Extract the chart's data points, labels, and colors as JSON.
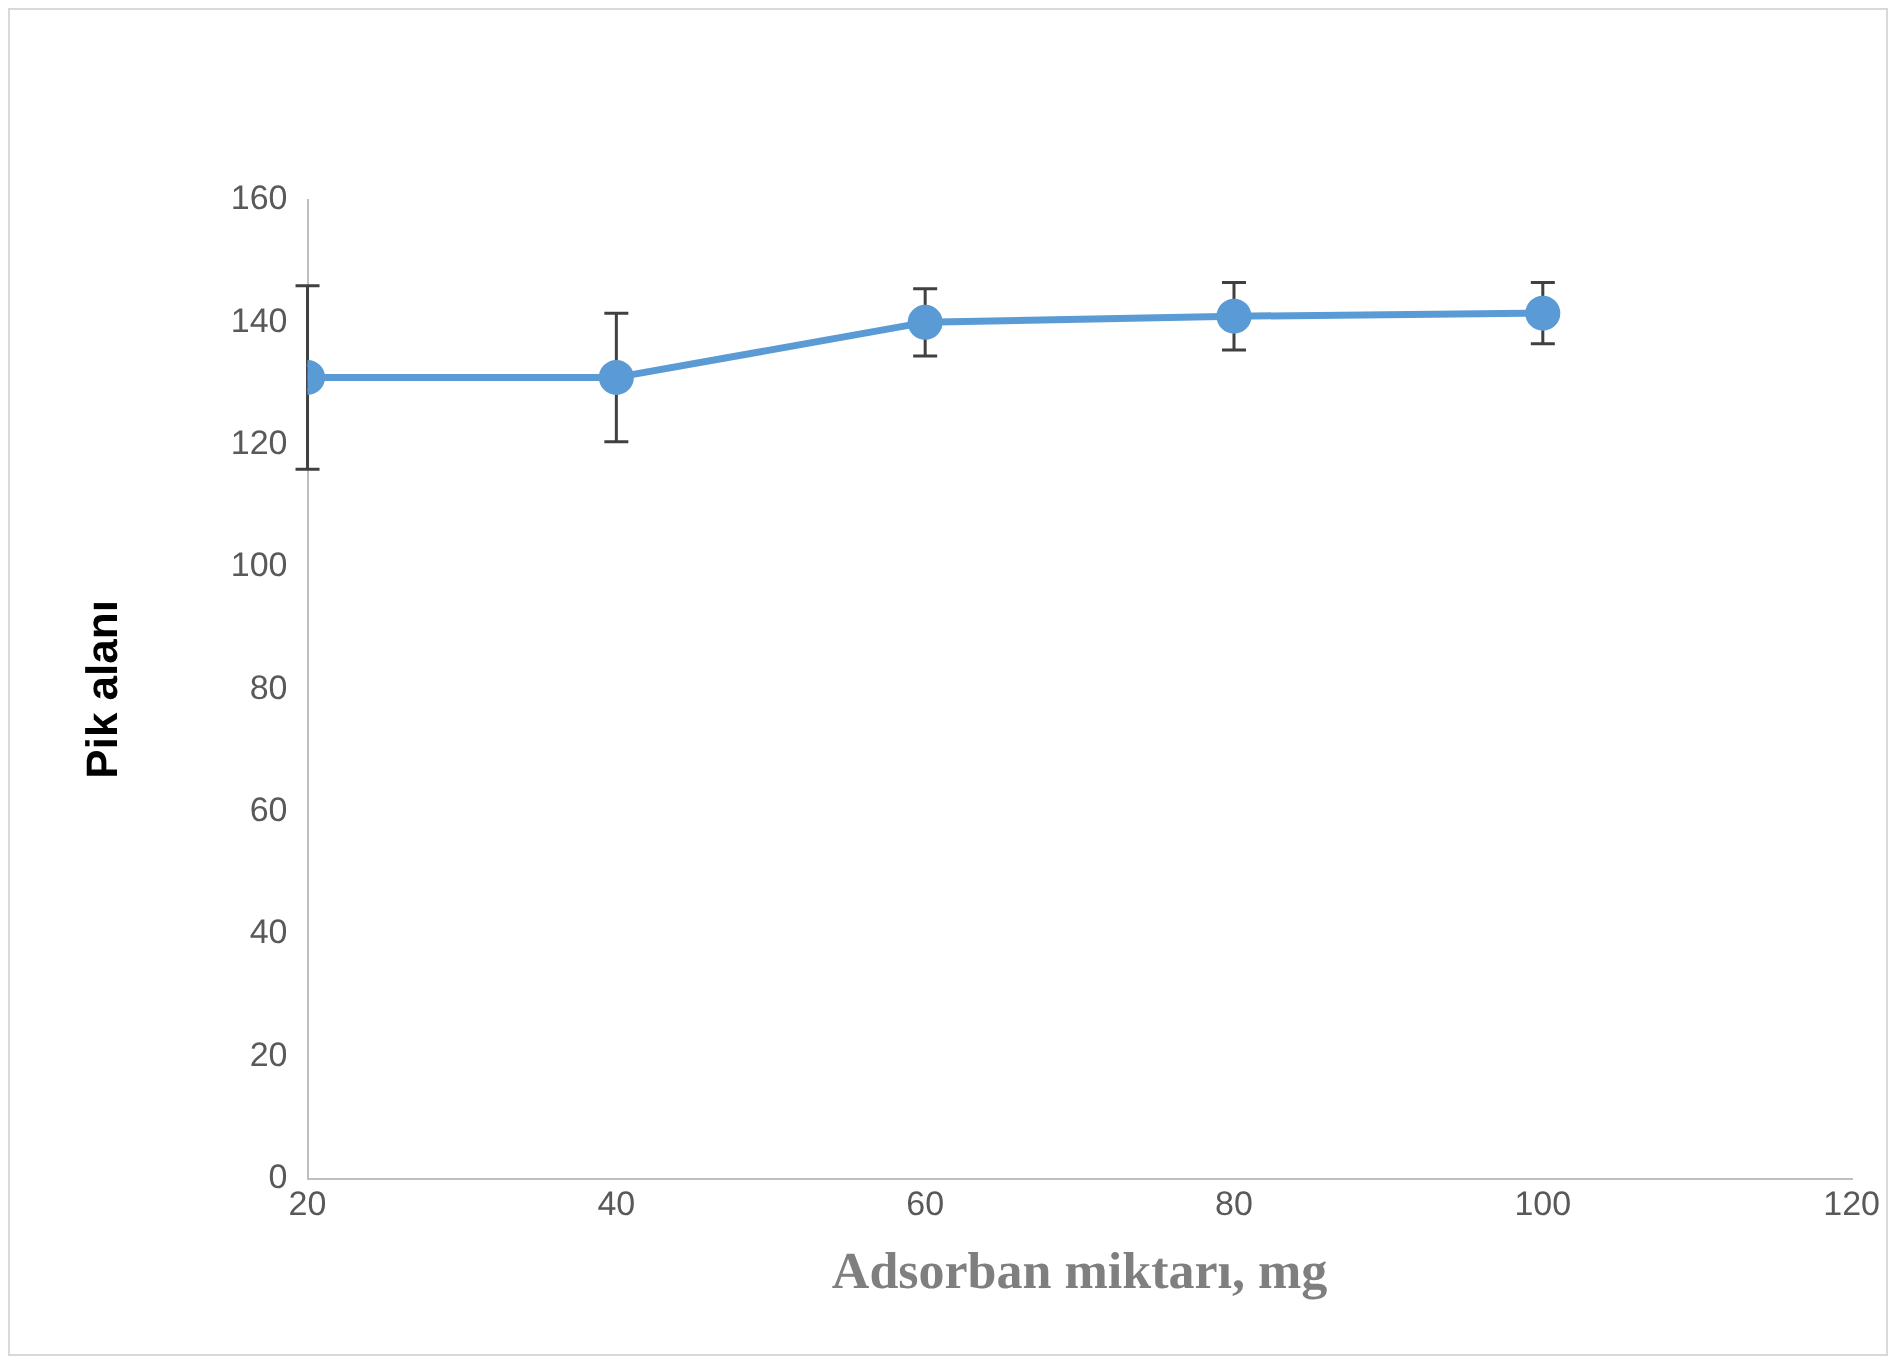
{
  "chart_data": {
    "type": "line",
    "xlabel": "Adsorban miktarı, mg",
    "ylabel": "Pik alanı",
    "x": [
      20,
      40,
      60,
      80,
      100
    ],
    "series": [
      {
        "color": "#5b9bd5",
        "values": [
          131,
          131,
          140,
          141,
          141.5
        ],
        "errors": [
          15,
          10.5,
          5.5,
          5.5,
          5
        ]
      }
    ],
    "xlim": [
      20,
      120
    ],
    "xticks": [
      20,
      40,
      60,
      80,
      100,
      120
    ],
    "ylim": [
      0,
      160
    ],
    "yticks": [
      0,
      20,
      40,
      60,
      80,
      100,
      120,
      140,
      160
    ],
    "grid": false,
    "legend": false,
    "marker": "circle",
    "line_style": "solid"
  }
}
